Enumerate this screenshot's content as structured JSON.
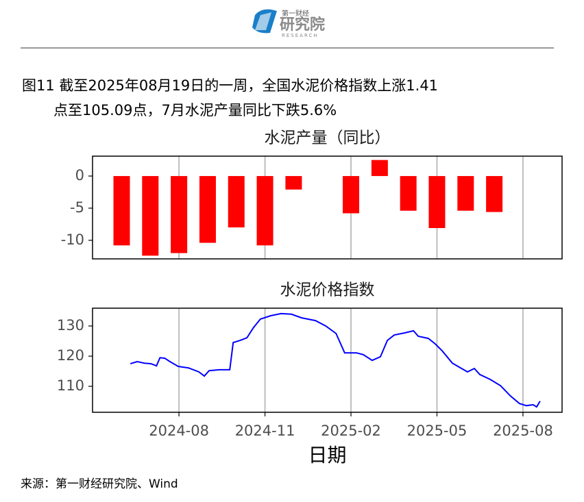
{
  "header": {
    "logo_top": "第一财经",
    "logo_main": "研究院",
    "logo_sub": "RESEARCH"
  },
  "caption": [
    "图11  截至2025年08月19日的一周，全国水泥价格指数上涨1.41",
    "点至105.09点，7月水泥产量同比下跌5.6%"
  ],
  "source": "来源：第一财经研究院、Wind",
  "chart_data": [
    {
      "type": "bar",
      "title": "水泥产量（同比）",
      "color": "#ff0000",
      "x": [
        2024.4167,
        2024.5,
        2024.5833,
        2024.6667,
        2024.75,
        2024.8333,
        2024.9167,
        2025.0833,
        2025.1667,
        2025.25,
        2025.3333,
        2025.4167,
        2025.5
      ],
      "values": [
        -10.8,
        -12.4,
        -12.0,
        -10.4,
        -8.0,
        -10.8,
        -2.1,
        -5.8,
        2.5,
        -5.4,
        -8.1,
        -5.4,
        -5.6
      ],
      "xlim": [
        2024.332,
        2025.697
      ],
      "xticks": [
        2024.5833,
        2024.8333,
        2025.0833,
        2025.3333,
        2025.5833
      ],
      "ylim": [
        -12.9,
        3.1
      ],
      "yticks": [
        -10,
        -5,
        0
      ],
      "grid": true
    },
    {
      "type": "line",
      "title": "水泥价格指数",
      "x_label": "日期",
      "series": [
        {
          "color": "#0000ff",
          "x": [
            2024.442,
            2024.462,
            2024.482,
            2024.502,
            2024.518,
            2024.528,
            2024.542,
            2024.557,
            2024.581,
            2024.611,
            2024.641,
            2024.657,
            2024.671,
            2024.701,
            2024.731,
            2024.741,
            2024.761,
            2024.781,
            2024.8,
            2024.82,
            2024.85,
            2024.88,
            2024.91,
            2024.94,
            2024.98,
            2025.01,
            2025.04,
            2025.065,
            2025.099,
            2025.119,
            2025.145,
            2025.169,
            2025.189,
            2025.209,
            2025.239,
            2025.265,
            2025.279,
            2025.308,
            2025.328,
            2025.348,
            2025.378,
            2025.402,
            2025.422,
            2025.442,
            2025.458,
            2025.488,
            2025.518,
            2025.547,
            2025.573,
            2025.593,
            2025.613,
            2025.623,
            2025.633
          ],
          "values": [
            117.5,
            118.2,
            117.7,
            117.5,
            116.8,
            119.5,
            119.3,
            118.2,
            116.6,
            116.1,
            114.8,
            113.4,
            115.2,
            115.5,
            115.5,
            124.5,
            125.2,
            126.1,
            129.5,
            132.3,
            133.4,
            134.1,
            133.9,
            132.7,
            131.8,
            130.0,
            127.5,
            121.1,
            121.1,
            120.5,
            118.6,
            119.8,
            125.2,
            127.0,
            127.7,
            128.4,
            126.6,
            125.9,
            124.1,
            121.8,
            117.7,
            116.1,
            114.8,
            115.9,
            113.9,
            112.3,
            110.2,
            106.8,
            104.3,
            103.6,
            103.9,
            103.2,
            105.1
          ]
        }
      ],
      "xlim": [
        2024.332,
        2025.697
      ],
      "xticks": [
        {
          "value": 2024.5833,
          "label": "2024-08"
        },
        {
          "value": 2024.8333,
          "label": "2024-11"
        },
        {
          "value": 2025.0833,
          "label": "2025-02"
        },
        {
          "value": 2025.3333,
          "label": "2025-05"
        },
        {
          "value": 2025.5833,
          "label": "2025-08"
        }
      ],
      "ylim": [
        101.4,
        135.9
      ],
      "yticks": [
        110,
        120,
        130
      ],
      "grid": true
    }
  ]
}
